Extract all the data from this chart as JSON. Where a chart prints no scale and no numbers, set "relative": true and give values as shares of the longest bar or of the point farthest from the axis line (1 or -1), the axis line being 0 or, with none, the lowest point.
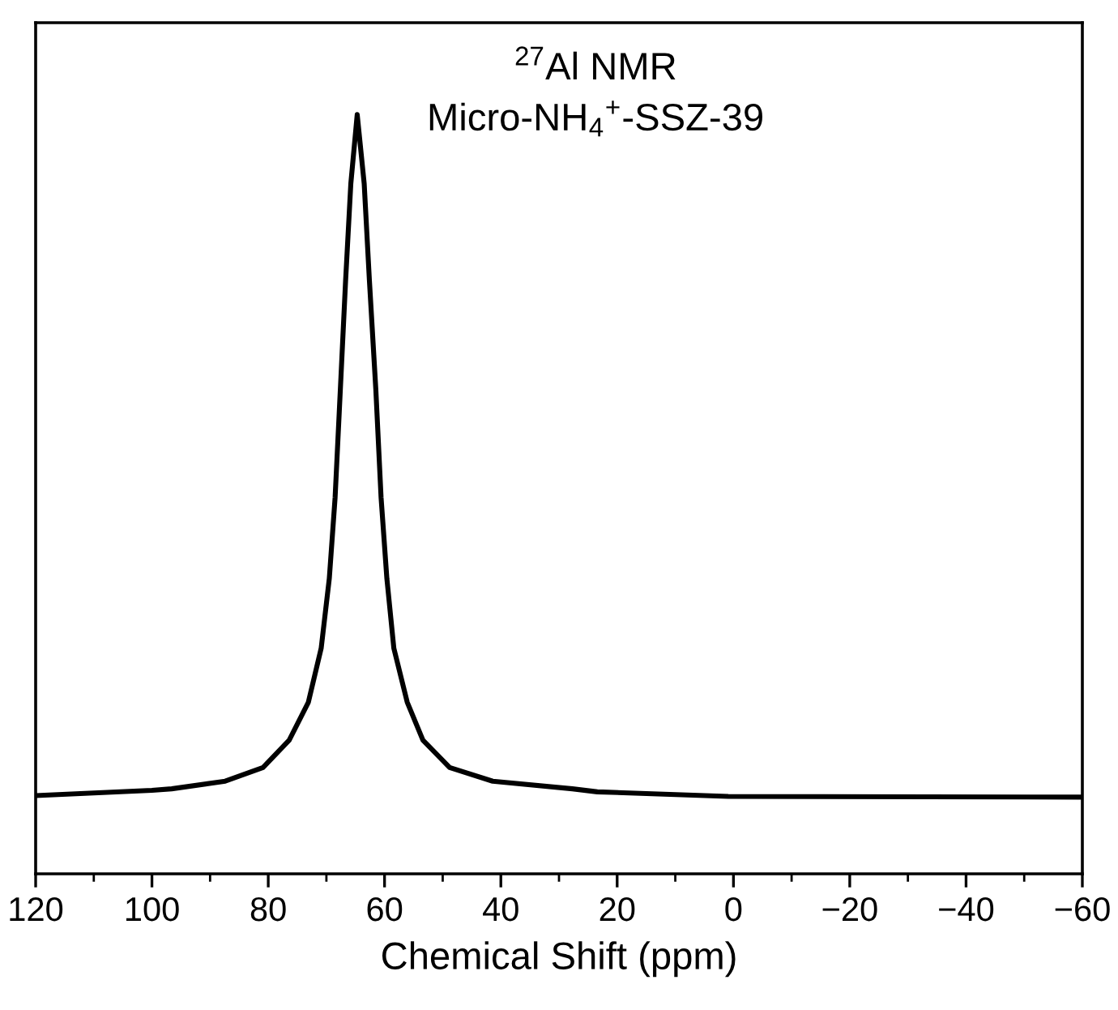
{
  "chart_data": {
    "type": "line",
    "relative": true,
    "xlabel": "Chemical Shift (ppm)",
    "annotations": [
      "$^{27}$Al NMR",
      "Micro-NH$_{4}$$^{+}$-SSZ-39"
    ],
    "xlim": [
      120,
      -60
    ],
    "xticks": [
      120,
      100,
      80,
      60,
      40,
      20,
      0,
      {
        "value": -20,
        "label": "−20"
      },
      {
        "value": -40,
        "label": "−40"
      },
      {
        "value": -60,
        "label": "−60"
      }
    ],
    "grid": false,
    "marker": "none",
    "line_style": "solid",
    "series": [
      {
        "color": "#000000",
        "x": [
          120,
          100,
          96.6,
          87.4,
          80.9,
          76.4,
          73.1,
          70.9,
          69.5,
          68.5,
          67.6,
          66.7,
          65.8,
          64.7,
          63.5,
          62.6,
          61.5,
          60.6,
          59.6,
          58.4,
          56.1,
          53.4,
          48.8,
          41.4,
          27.7,
          23.4,
          0.9,
          -60
        ],
        "values": [
          0.103,
          0.11,
          0.112,
          0.122,
          0.14,
          0.176,
          0.226,
          0.297,
          0.389,
          0.496,
          0.638,
          0.781,
          0.909,
          1.0,
          0.909,
          0.781,
          0.638,
          0.496,
          0.389,
          0.297,
          0.226,
          0.176,
          0.14,
          0.122,
          0.112,
          0.108,
          0.102,
          0.101
        ]
      }
    ]
  }
}
